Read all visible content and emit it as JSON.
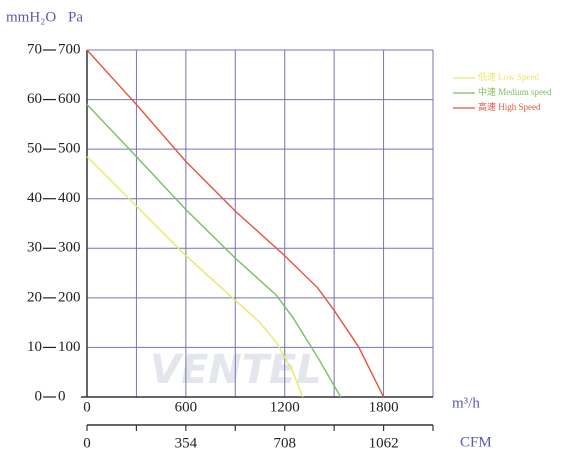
{
  "chart_data": {
    "type": "line",
    "y_unit_label": "mmH₂O",
    "y2_unit_label": "Pa",
    "x_unit_label": "m³/h",
    "x2_unit_label": "CFM",
    "watermark": "VENTEL",
    "xlim": [
      0,
      2100
    ],
    "xticks": [
      0,
      600,
      1200,
      1800
    ],
    "x_minor_ticks": [
      300,
      900,
      1500,
      2100
    ],
    "x2lim": [
      0,
      1239
    ],
    "x2ticks": [
      0,
      354,
      708,
      1062
    ],
    "x2_minor_ticks": [
      177,
      531,
      885,
      1239
    ],
    "ylim": [
      0,
      70
    ],
    "yticks": [
      0,
      10,
      20,
      30,
      40,
      50,
      60,
      70
    ],
    "y2lim": [
      0,
      700
    ],
    "y2ticks": [
      0,
      100,
      200,
      300,
      400,
      500,
      600,
      700
    ],
    "grid": true,
    "legend": "upper right",
    "series": [
      {
        "name": "低速 Low Speed",
        "color": "#e8e86a",
        "axis": "y2",
        "x": [
          0,
          300,
          600,
          900,
          1050,
          1150,
          1250,
          1310
        ],
        "values": [
          485,
          385,
          285,
          195,
          150,
          110,
          50,
          0
        ]
      },
      {
        "name": "中速 Medium speed",
        "color": "#7cbf5a",
        "axis": "y2",
        "x": [
          0,
          300,
          600,
          900,
          1150,
          1250,
          1400,
          1540
        ],
        "values": [
          590,
          485,
          378,
          280,
          205,
          160,
          80,
          0
        ]
      },
      {
        "name": "高速 High Speed",
        "color": "#e5553a",
        "axis": "y2",
        "x": [
          0,
          300,
          600,
          900,
          1200,
          1400,
          1500,
          1650,
          1800
        ],
        "values": [
          700,
          590,
          475,
          375,
          285,
          220,
          175,
          100,
          0
        ]
      }
    ]
  }
}
